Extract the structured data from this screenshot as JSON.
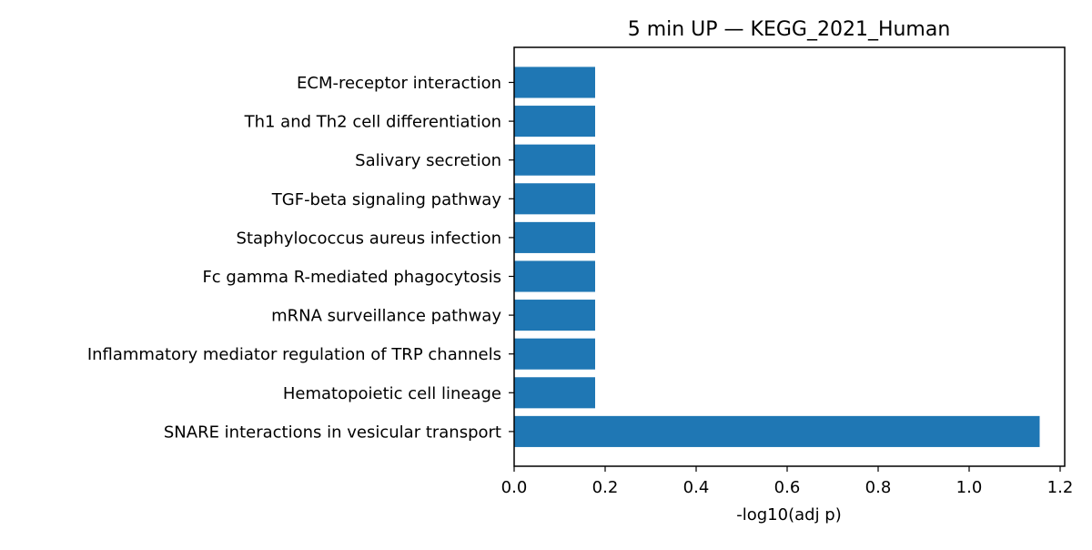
{
  "chart_data": {
    "type": "bar",
    "orientation": "horizontal",
    "title": "5 min UP — KEGG_2021_Human",
    "xlabel": "-log10(adj p)",
    "ylabel": "",
    "categories": [
      "ECM-receptor interaction",
      "Th1 and Th2 cell differentiation",
      "Salivary secretion",
      "TGF-beta signaling pathway",
      "Staphylococcus aureus infection",
      "Fc gamma R-mediated phagocytosis",
      "mRNA surveillance pathway",
      "Inflammatory mediator regulation of TRP channels",
      "Hematopoietic cell lineage",
      "SNARE interactions in vesicular transport"
    ],
    "values": [
      0.178,
      0.178,
      0.178,
      0.178,
      0.178,
      0.178,
      0.178,
      0.178,
      0.178,
      1.155
    ],
    "xlim": [
      0,
      1.21
    ],
    "xticks": [
      "0.0",
      "0.2",
      "0.4",
      "0.6",
      "0.8",
      "1.0",
      "1.2"
    ],
    "bar_color": "#1f77b4",
    "grid": false,
    "legend": "none"
  }
}
